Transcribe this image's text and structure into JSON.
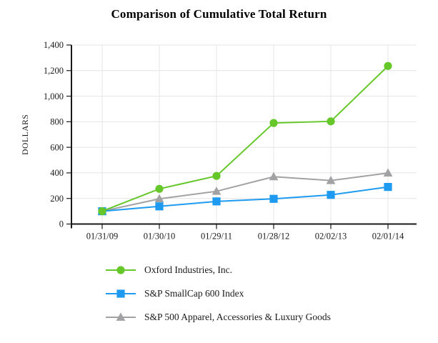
{
  "chart_data": {
    "type": "line",
    "title": "Comparison of Cumulative Total Return",
    "ylabel": "DOLLARS",
    "xlabel": "",
    "ylim": [
      0,
      1400
    ],
    "yticks": [
      0,
      200,
      400,
      600,
      800,
      1000,
      1200,
      1400
    ],
    "grid": true,
    "legend_position": "bottom-left",
    "categories": [
      "01/31/09",
      "01/30/10",
      "01/29/11",
      "01/28/12",
      "02/02/13",
      "02/01/14"
    ],
    "series": [
      {
        "name": "Oxford Industries, Inc.",
        "marker": "circle",
        "color": "#66C72B",
        "values": [
          100,
          275,
          376,
          790,
          803,
          1236
        ]
      },
      {
        "name": "S&P SmallCap 600 Index",
        "marker": "square",
        "color": "#1E9BF0",
        "values": [
          100,
          138,
          177,
          197,
          228,
          290
        ]
      },
      {
        "name": "S&P 500 Apparel, Accessories & Luxury Goods",
        "marker": "triangle",
        "color": "#A2A2A4",
        "values": [
          100,
          197,
          256,
          370,
          340,
          399
        ]
      }
    ],
    "colors": {
      "axis": "#1a1a1a",
      "gridline": "#e4e4e4",
      "background": "#ffffff"
    }
  }
}
